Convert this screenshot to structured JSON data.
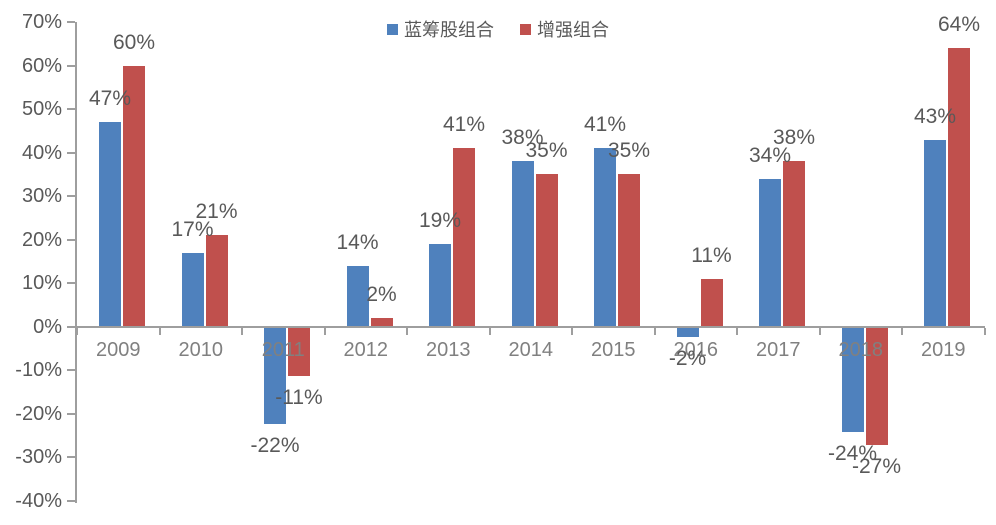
{
  "chart_data": {
    "type": "bar",
    "title": "",
    "categories": [
      "2009",
      "2010",
      "2011",
      "2012",
      "2013",
      "2014",
      "2015",
      "2016",
      "2017",
      "2018",
      "2019"
    ],
    "series": [
      {
        "name": "蓝筹股组合",
        "color": "#4F81BD",
        "values": [
          47,
          17,
          -22,
          14,
          19,
          38,
          41,
          -2,
          34,
          -24,
          43
        ],
        "labels": [
          "47%",
          "17%",
          "-22%",
          "14%",
          "19%",
          "38%",
          "41%",
          "-2%",
          "34%",
          "-24%",
          "43%"
        ]
      },
      {
        "name": "增强组合",
        "color": "#C0504D",
        "values": [
          60,
          21,
          -11,
          2,
          41,
          35,
          35,
          11,
          38,
          -27,
          64
        ],
        "labels": [
          "60%",
          "21%",
          "-11%",
          "2%",
          "41%",
          "35%",
          "35%",
          "11%",
          "38%",
          "-27%",
          "64%"
        ]
      }
    ],
    "xlabel": "",
    "ylabel": "",
    "y_axis": {
      "min": -40,
      "max": 70,
      "step": 10,
      "tick_labels": [
        "70%",
        "60%",
        "50%",
        "40%",
        "30%",
        "20%",
        "10%",
        "0%",
        "-10%",
        "-20%",
        "-30%",
        "-40%"
      ]
    },
    "grid": false,
    "legend_position": "top-center",
    "colors": {
      "axis": "#9e9e9e",
      "label_text": "#595959",
      "category_text": "#808080",
      "background": "#ffffff"
    }
  }
}
